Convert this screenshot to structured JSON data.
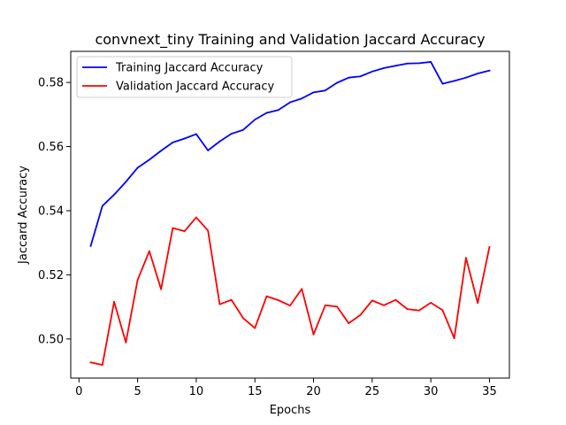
{
  "chart_data": {
    "type": "line",
    "title": "convnext_tiny Training and Validation Jaccard Accuracy",
    "xlabel": "Epochs",
    "ylabel": "Jaccard Accuracy",
    "xlim": [
      -0.7,
      36.7
    ],
    "ylim": [
      0.4878,
      0.5897
    ],
    "xticks": [
      0,
      5,
      10,
      15,
      20,
      25,
      30,
      35
    ],
    "xtick_labels": [
      "0",
      "5",
      "10",
      "15",
      "20",
      "25",
      "30",
      "35"
    ],
    "yticks": [
      0.5,
      0.52,
      0.54,
      0.56,
      0.58
    ],
    "ytick_labels": [
      "0.50",
      "0.52",
      "0.54",
      "0.56",
      "0.58"
    ],
    "grid": false,
    "legend_position": "upper-left",
    "x": [
      1,
      2,
      3,
      4,
      5,
      6,
      7,
      8,
      9,
      10,
      11,
      12,
      13,
      14,
      15,
      16,
      17,
      18,
      19,
      20,
      21,
      22,
      23,
      24,
      25,
      26,
      27,
      28,
      29,
      30,
      31,
      32,
      33,
      34,
      35
    ],
    "series": [
      {
        "name": "Training Jaccard Accuracy",
        "color": "#0000ff",
        "values": [
          0.529,
          0.5415,
          0.545,
          0.549,
          0.5534,
          0.5559,
          0.5587,
          0.5613,
          0.5625,
          0.5639,
          0.5588,
          0.5616,
          0.564,
          0.5652,
          0.5684,
          0.5705,
          0.5714,
          0.5738,
          0.575,
          0.5769,
          0.5775,
          0.5799,
          0.5815,
          0.5819,
          0.5834,
          0.5845,
          0.5852,
          0.5859,
          0.586,
          0.5864,
          0.5796,
          0.5805,
          0.5815,
          0.5828,
          0.5837
        ]
      },
      {
        "name": "Validation Jaccard Accuracy",
        "color": "#ff0000",
        "values": [
          0.4927,
          0.4919,
          0.5116,
          0.4989,
          0.5184,
          0.5274,
          0.5155,
          0.5346,
          0.5336,
          0.5379,
          0.5338,
          0.5108,
          0.5122,
          0.5065,
          0.5034,
          0.5133,
          0.5121,
          0.5104,
          0.5156,
          0.5014,
          0.5105,
          0.5101,
          0.5049,
          0.5075,
          0.512,
          0.5105,
          0.5122,
          0.5093,
          0.5089,
          0.5113,
          0.509,
          0.5002,
          0.5253,
          0.5112,
          0.5287
        ]
      }
    ]
  }
}
